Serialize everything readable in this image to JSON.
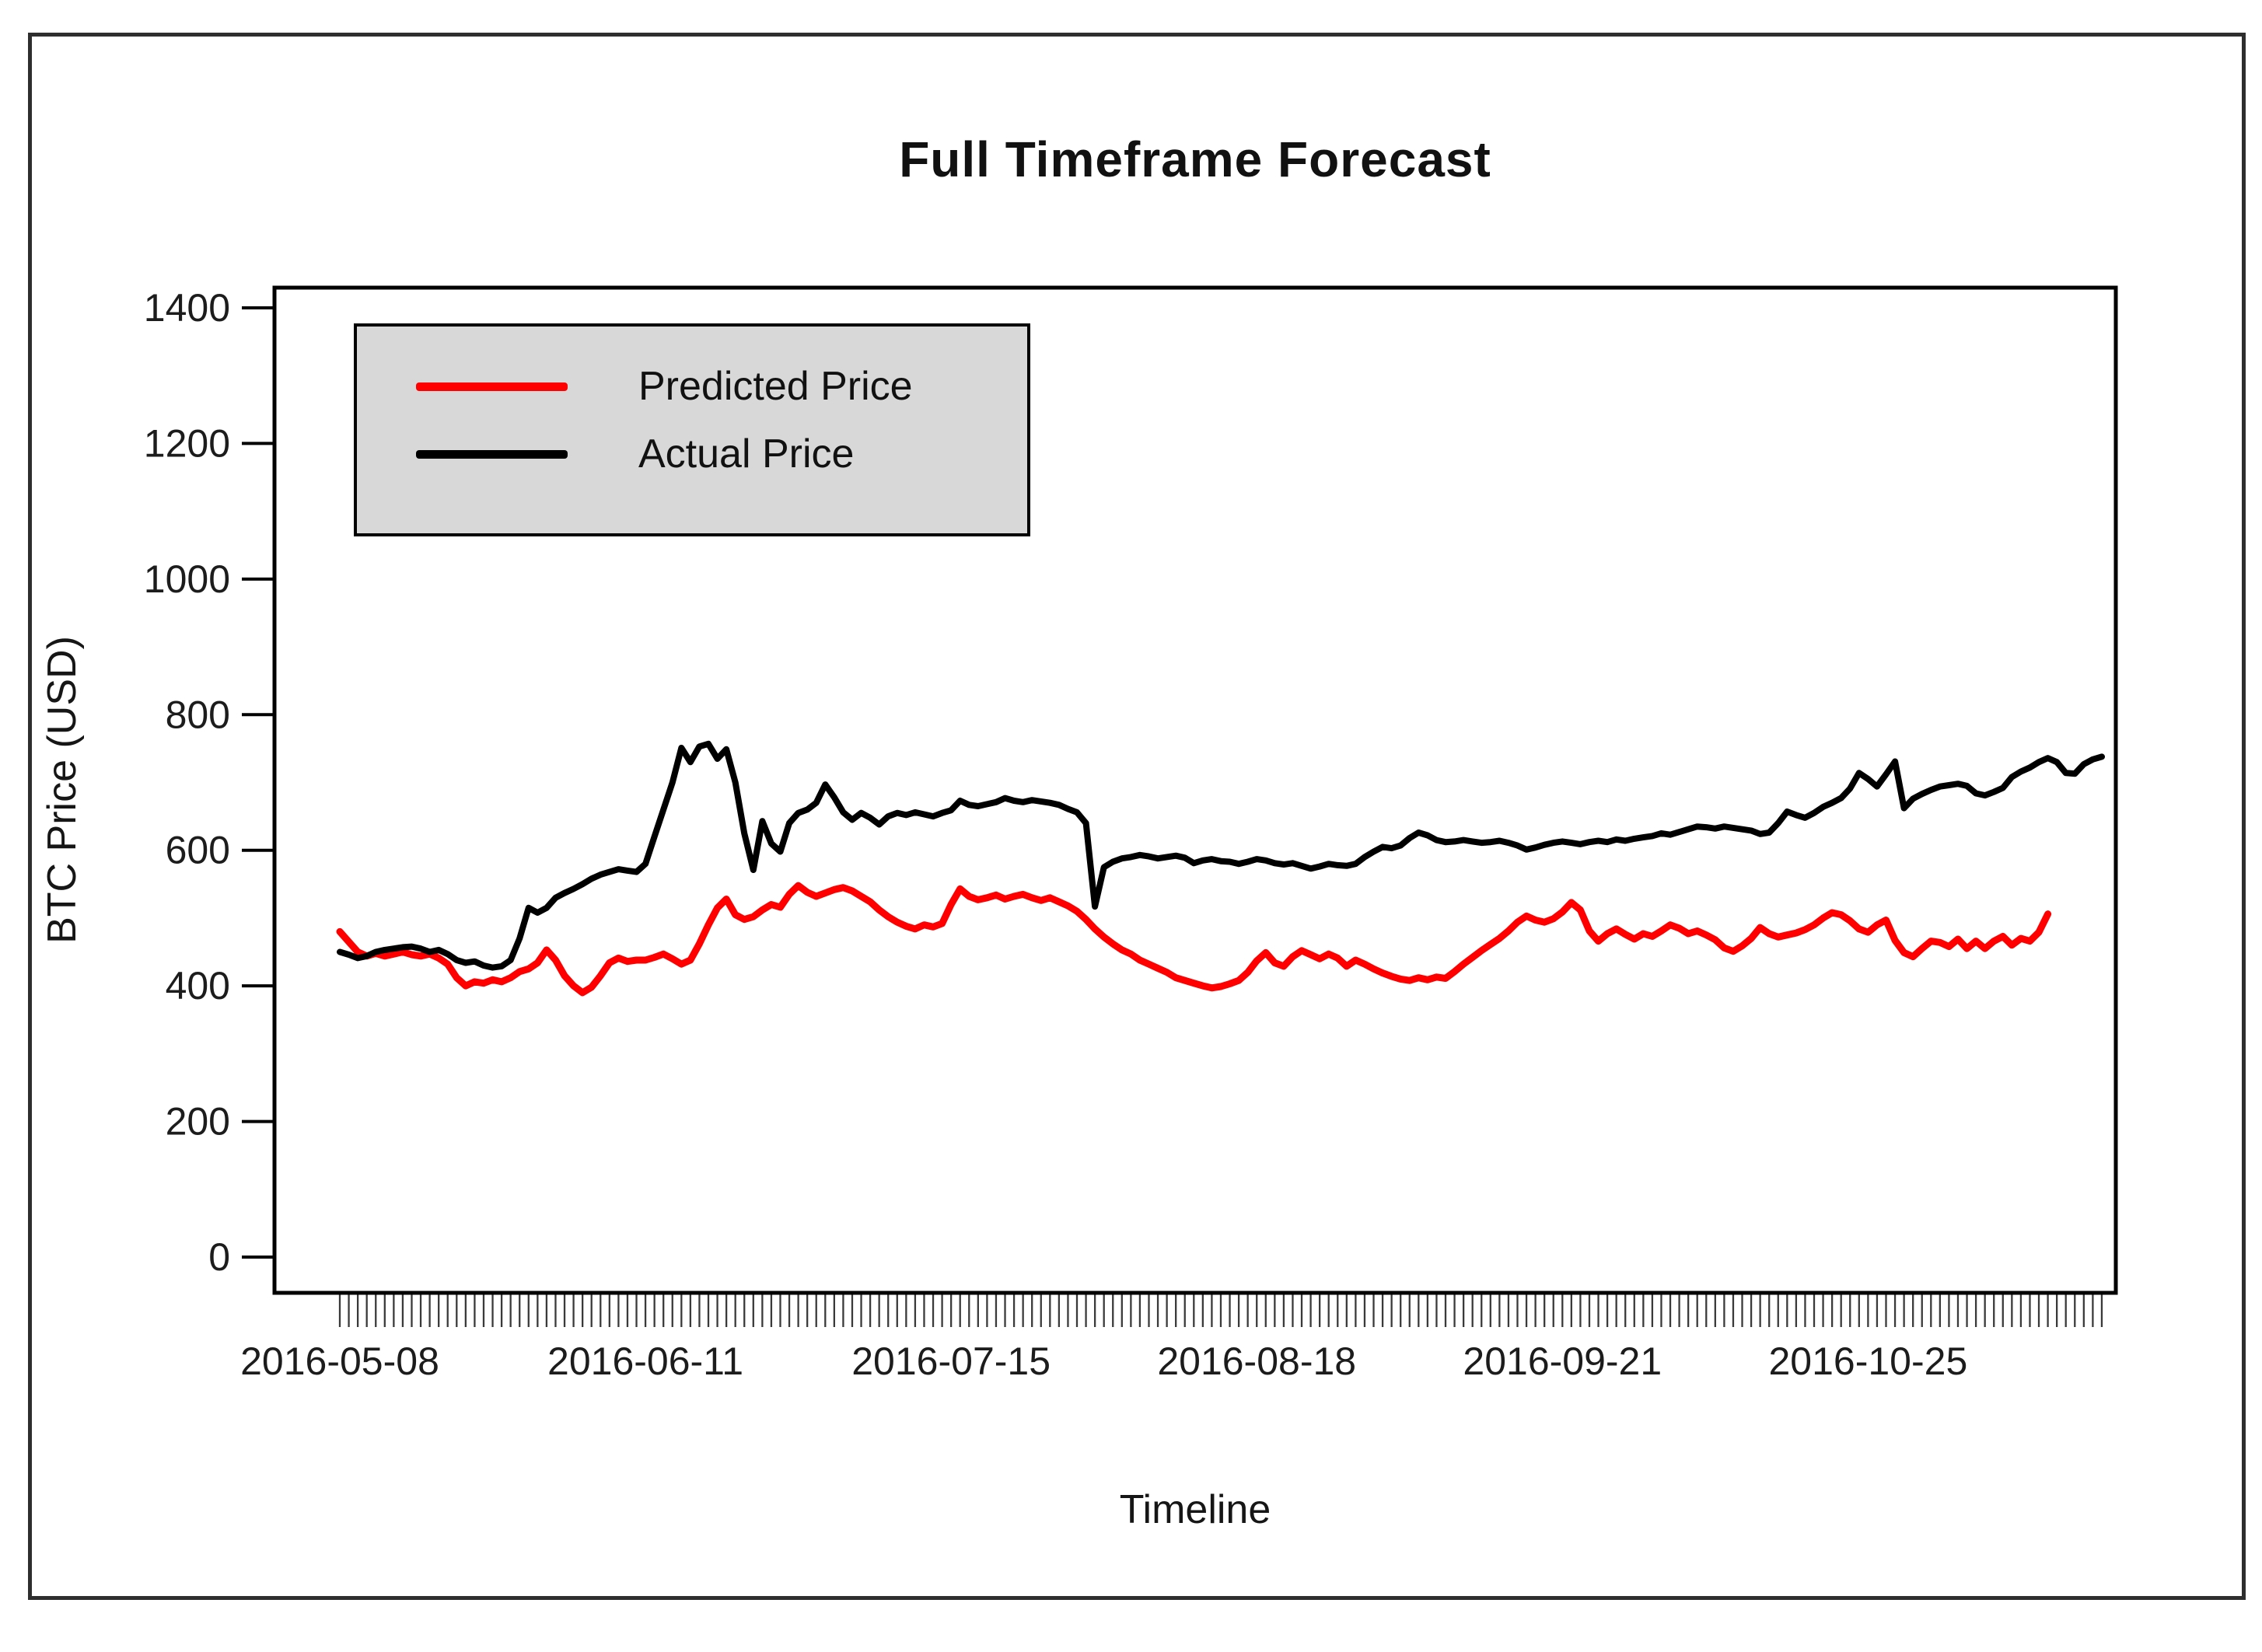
{
  "figure": {
    "title": "Full Timeframe Forecast",
    "x_axis_label": "Timeline",
    "y_axis_label": "BTC Price (USD)"
  },
  "legend": {
    "items": [
      {
        "label": "Predicted Price",
        "color": "#ff0000"
      },
      {
        "label": "Actual Price",
        "color": "#000000"
      }
    ]
  },
  "chart_data": {
    "type": "line",
    "title": "Full Timeframe Forecast",
    "xlabel": "Timeline",
    "ylabel": "BTC Price (USD)",
    "ylim": [
      0,
      1400
    ],
    "y_ticks": [
      0,
      200,
      400,
      600,
      800,
      1000,
      1200,
      1400
    ],
    "x_tick_labels": [
      "2016-05-08",
      "2016-06-11",
      "2016-07-15",
      "2016-08-18",
      "2016-09-21",
      "2016-10-25"
    ],
    "x_tick_day_indices": [
      0,
      34,
      68,
      102,
      136,
      170
    ],
    "x_unit": "days since 2016-05-08, one point per day (minor tick per day)",
    "grid": false,
    "legend_position": "top-left",
    "series": [
      {
        "name": "Predicted Price",
        "color": "#ff0000",
        "values": [
          480,
          465,
          450,
          444,
          448,
          444,
          447,
          450,
          446,
          444,
          447,
          441,
          432,
          412,
          400,
          406,
          404,
          409,
          406,
          412,
          421,
          425,
          434,
          453,
          438,
          415,
          400,
          390,
          398,
          415,
          434,
          441,
          436,
          438,
          438,
          442,
          447,
          440,
          432,
          438,
          462,
          490,
          515,
          528,
          505,
          498,
          502,
          512,
          520,
          516,
          535,
          548,
          538,
          532,
          537,
          542,
          545,
          540,
          532,
          524,
          512,
          502,
          494,
          488,
          484,
          490,
          487,
          492,
          520,
          543,
          532,
          527,
          530,
          534,
          528,
          532,
          535,
          530,
          526,
          530,
          524,
          518,
          510,
          498,
          484,
          472,
          462,
          453,
          447,
          438,
          432,
          426,
          420,
          412,
          408,
          404,
          400,
          397,
          399,
          403,
          408,
          420,
          437,
          449,
          434,
          429,
          443,
          452,
          446,
          440,
          447,
          441,
          429,
          438,
          432,
          425,
          419,
          414,
          410,
          408,
          412,
          409,
          413,
          411,
          421,
          432,
          442,
          452,
          461,
          470,
          481,
          494,
          503,
          497,
          494,
          499,
          509,
          523,
          512,
          481,
          466,
          477,
          484,
          476,
          469,
          477,
          473,
          481,
          490,
          485,
          477,
          481,
          475,
          468,
          456,
          451,
          459,
          470,
          486,
          477,
          472,
          475,
          478,
          483,
          490,
          500,
          508,
          505,
          496,
          484,
          479,
          490,
          497,
          467,
          449,
          443,
          455,
          466,
          464,
          458,
          469,
          455,
          466,
          455,
          466,
          473,
          460,
          470,
          466,
          479,
          506
        ]
      },
      {
        "name": "Actual Price",
        "color": "#000000",
        "values": [
          450,
          446,
          441,
          444,
          450,
          453,
          455,
          457,
          458,
          455,
          450,
          453,
          447,
          438,
          434,
          436,
          430,
          427,
          429,
          438,
          470,
          515,
          508,
          515,
          530,
          537,
          543,
          550,
          558,
          564,
          568,
          572,
          570,
          568,
          580,
          620,
          660,
          700,
          751,
          730,
          753,
          757,
          735,
          749,
          700,
          625,
          571,
          643,
          610,
          598,
          640,
          655,
          660,
          670,
          697,
          678,
          656,
          645,
          655,
          648,
          638,
          650,
          655,
          652,
          656,
          653,
          650,
          655,
          659,
          673,
          667,
          665,
          668,
          671,
          677,
          673,
          671,
          674,
          672,
          670,
          667,
          661,
          656,
          640,
          517,
          575,
          583,
          588,
          590,
          593,
          591,
          588,
          590,
          592,
          589,
          581,
          585,
          587,
          584,
          583,
          580,
          583,
          587,
          585,
          581,
          579,
          581,
          577,
          573,
          576,
          580,
          578,
          577,
          580,
          590,
          598,
          605,
          603,
          607,
          618,
          626,
          622,
          615,
          612,
          613,
          615,
          613,
          611,
          612,
          614,
          611,
          607,
          601,
          604,
          608,
          611,
          613,
          611,
          609,
          612,
          614,
          612,
          616,
          614,
          617,
          619,
          621,
          625,
          623,
          627,
          631,
          635,
          634,
          632,
          635,
          633,
          631,
          629,
          624,
          626,
          640,
          657,
          652,
          648,
          655,
          664,
          670,
          677,
          691,
          714,
          705,
          694,
          712,
          731,
          662,
          676,
          683,
          689,
          694,
          696,
          698,
          695,
          684,
          681,
          686,
          692,
          708,
          716,
          722,
          730,
          736,
          730,
          714,
          713,
          727,
          734,
          738
        ]
      }
    ]
  }
}
